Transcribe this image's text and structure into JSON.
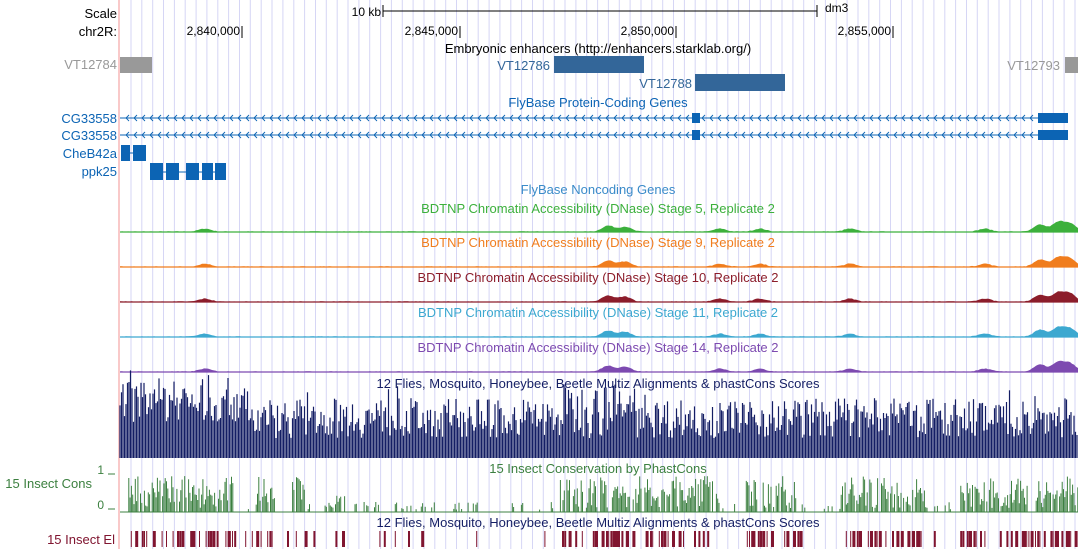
{
  "ruler": {
    "scale_label": "Scale",
    "scale_value": "10 kb",
    "assembly": "dm3",
    "chrom_label": "chr2R:",
    "ticks": [
      "2,840,000",
      "2,845,000",
      "2,850,000",
      "2,855,000"
    ]
  },
  "tracks": {
    "enhancers": {
      "title": "Embryonic enhancers (http://enhancers.starklab.org/)",
      "items": [
        {
          "name": "VT12784",
          "color": "#999999"
        },
        {
          "name": "VT12786",
          "color": "#336699"
        },
        {
          "name": "VT12788",
          "color": "#336699"
        },
        {
          "name": "VT12793",
          "color": "#999999"
        }
      ]
    },
    "genes": {
      "title": "FlyBase Protein-Coding Genes",
      "color": "#0c64b4",
      "items": [
        {
          "name": "CG33558"
        },
        {
          "name": "CG33558"
        },
        {
          "name": "CheB42a"
        },
        {
          "name": "ppk25"
        }
      ]
    },
    "noncoding": {
      "title": "FlyBase Noncoding Genes",
      "color": "#3a8bc9"
    },
    "dnase": [
      {
        "title": "BDTNP Chromatin Accessibility (DNase) Stage 5, Replicate 2",
        "color": "#3cb03c"
      },
      {
        "title": "BDTNP Chromatin Accessibility (DNase) Stage 9, Replicate 2",
        "color": "#f07d1e"
      },
      {
        "title": "BDTNP Chromatin Accessibility (DNase) Stage 10, Replicate 2",
        "color": "#8c1d2b"
      },
      {
        "title": "BDTNP Chromatin Accessibility (DNase) Stage 11, Replicate 2",
        "color": "#3ca8d0"
      },
      {
        "title": "BDTNP Chromatin Accessibility (DNase) Stage 14, Replicate 2",
        "color": "#7d4ab0"
      }
    ],
    "multiz": {
      "title": "12 Flies, Mosquito, Honeybee, Beetle Multiz Alignments & phastCons Scores",
      "color": "#141e64"
    },
    "cons": {
      "title": "15 Insect Conservation by PhastCons",
      "label": "15 Insect Cons",
      "axis_max": "1",
      "axis_min": "0",
      "color": "#3c8040"
    },
    "elements": {
      "title": "12 Flies, Mosquito, Honeybee, Beetle Multiz Alignments & phastCons Scores",
      "label": "15 Insect El",
      "color": "#801530"
    }
  }
}
